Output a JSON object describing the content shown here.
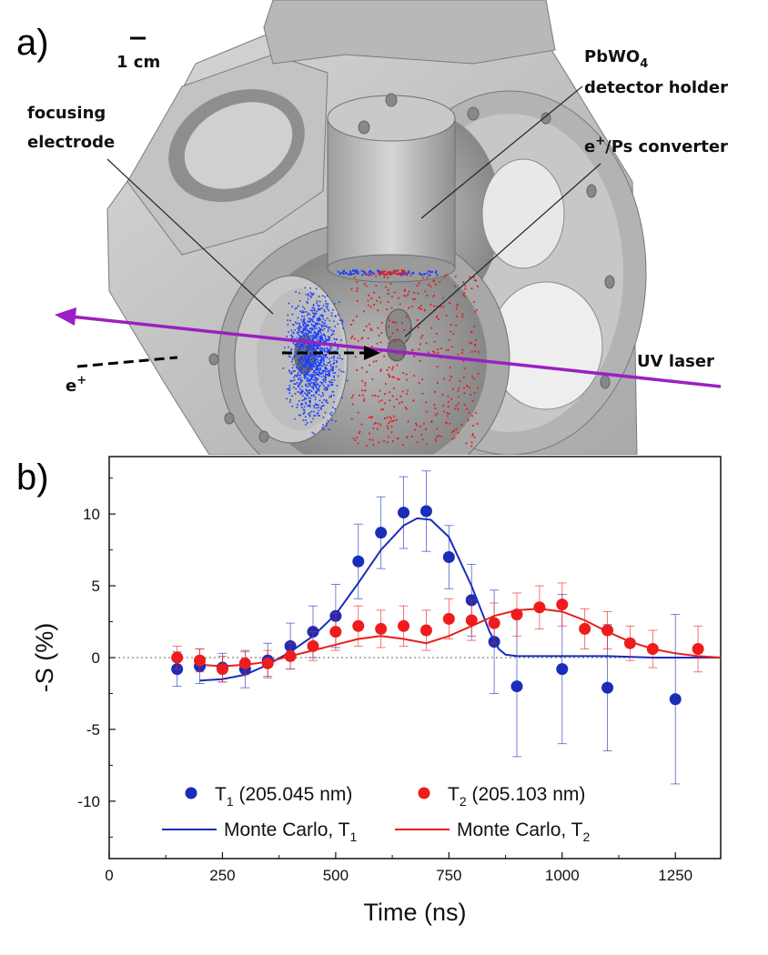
{
  "panel_a": {
    "letter": "a)",
    "scale_bar": "1 cm",
    "labels": {
      "focusing_1": "focusing",
      "focusing_2": "electrode",
      "pbwo_1": "PbWO",
      "pbwo_sub": "4",
      "pbwo_2": "detector holder",
      "converter_main": "/Ps converter",
      "converter_e": "e",
      "converter_sup": "+",
      "positron_e": "e",
      "positron_sup": "+",
      "uv_laser": "UV laser"
    },
    "colors": {
      "laser": "#9b1fc3",
      "blue_cloud": "#1a3cff",
      "red_cloud": "#e81a1a",
      "metal": "#c9c9c9"
    }
  },
  "panel_b": {
    "letter": "b)"
  },
  "chart_data": {
    "type": "scatter",
    "xlabel": "Time (ns)",
    "ylabel": "-S (%)",
    "xlim": [
      0,
      1350
    ],
    "ylim": [
      -14,
      14
    ],
    "xticks": [
      0,
      250,
      500,
      750,
      1000,
      1250
    ],
    "yticks": [
      -10,
      -5,
      0,
      5,
      10
    ],
    "zero_line": true,
    "legend_position": "bottom-center",
    "series": [
      {
        "name": "T1 (205.045 nm)",
        "legend_main": "T",
        "legend_sub": "1",
        "legend_rest": " (205.045 nm)",
        "color": "#1a2db8",
        "kind": "points",
        "x": [
          150,
          200,
          250,
          300,
          350,
          400,
          450,
          500,
          550,
          600,
          650,
          700,
          750,
          800,
          850,
          900,
          1000,
          1100,
          1250
        ],
        "y": [
          -0.8,
          -0.6,
          -0.7,
          -0.8,
          -0.2,
          0.8,
          1.8,
          2.9,
          6.7,
          8.7,
          10.1,
          10.2,
          7.0,
          4.0,
          1.1,
          -2.0,
          -0.8,
          -2.1,
          -2.9
        ],
        "err": [
          1.2,
          1.2,
          1.0,
          1.3,
          1.2,
          1.6,
          1.8,
          2.2,
          2.6,
          2.5,
          2.5,
          2.8,
          2.2,
          2.5,
          3.6,
          4.9,
          5.2,
          4.4,
          5.9
        ]
      },
      {
        "name": "T2 (205.103 nm)",
        "legend_main": "T",
        "legend_sub": "2",
        "legend_rest": " (205.103 nm)",
        "color": "#ee1c1c",
        "kind": "points",
        "x": [
          150,
          200,
          250,
          300,
          350,
          400,
          450,
          500,
          550,
          600,
          650,
          700,
          750,
          800,
          850,
          900,
          950,
          1000,
          1050,
          1100,
          1150,
          1200,
          1300
        ],
        "y": [
          0.0,
          -0.2,
          -0.8,
          -0.4,
          -0.4,
          0.1,
          0.8,
          1.8,
          2.2,
          2.0,
          2.2,
          1.9,
          2.7,
          2.6,
          2.4,
          3.0,
          3.5,
          3.7,
          2.0,
          1.9,
          1.0,
          0.6,
          0.6
        ],
        "err": [
          0.8,
          0.8,
          0.9,
          0.8,
          0.9,
          0.9,
          1.0,
          1.3,
          1.4,
          1.3,
          1.4,
          1.4,
          1.4,
          1.4,
          1.4,
          1.5,
          1.5,
          1.5,
          1.4,
          1.3,
          1.2,
          1.3,
          1.6
        ]
      },
      {
        "name": "Monte Carlo, T1",
        "legend_main": "Monte Carlo, T",
        "legend_sub": "1",
        "color": "#1a2db8",
        "kind": "line",
        "x": [
          200,
          250,
          300,
          350,
          400,
          450,
          500,
          550,
          600,
          650,
          680,
          710,
          750,
          800,
          840,
          860,
          875,
          900,
          1000,
          1100,
          1200,
          1300,
          1350
        ],
        "y": [
          -1.6,
          -1.5,
          -1.2,
          -0.5,
          0.4,
          1.5,
          3.0,
          5.2,
          7.5,
          9.2,
          9.7,
          9.6,
          8.4,
          5.0,
          1.8,
          0.6,
          0.2,
          0.1,
          0.1,
          0.1,
          0.0,
          0.0,
          0.0
        ]
      },
      {
        "name": "Monte Carlo, T2",
        "legend_main": "Monte Carlo, T",
        "legend_sub": "2",
        "color": "#ee1c1c",
        "kind": "line",
        "x": [
          200,
          250,
          300,
          350,
          400,
          450,
          500,
          550,
          600,
          650,
          700,
          750,
          800,
          850,
          900,
          950,
          1000,
          1050,
          1100,
          1150,
          1200,
          1250,
          1300,
          1350
        ],
        "y": [
          -0.5,
          -0.6,
          -0.5,
          -0.3,
          0.1,
          0.5,
          0.9,
          1.3,
          1.5,
          1.3,
          1.0,
          1.5,
          2.2,
          2.9,
          3.3,
          3.4,
          3.2,
          2.6,
          1.8,
          1.1,
          0.6,
          0.3,
          0.1,
          0.0
        ]
      }
    ]
  }
}
